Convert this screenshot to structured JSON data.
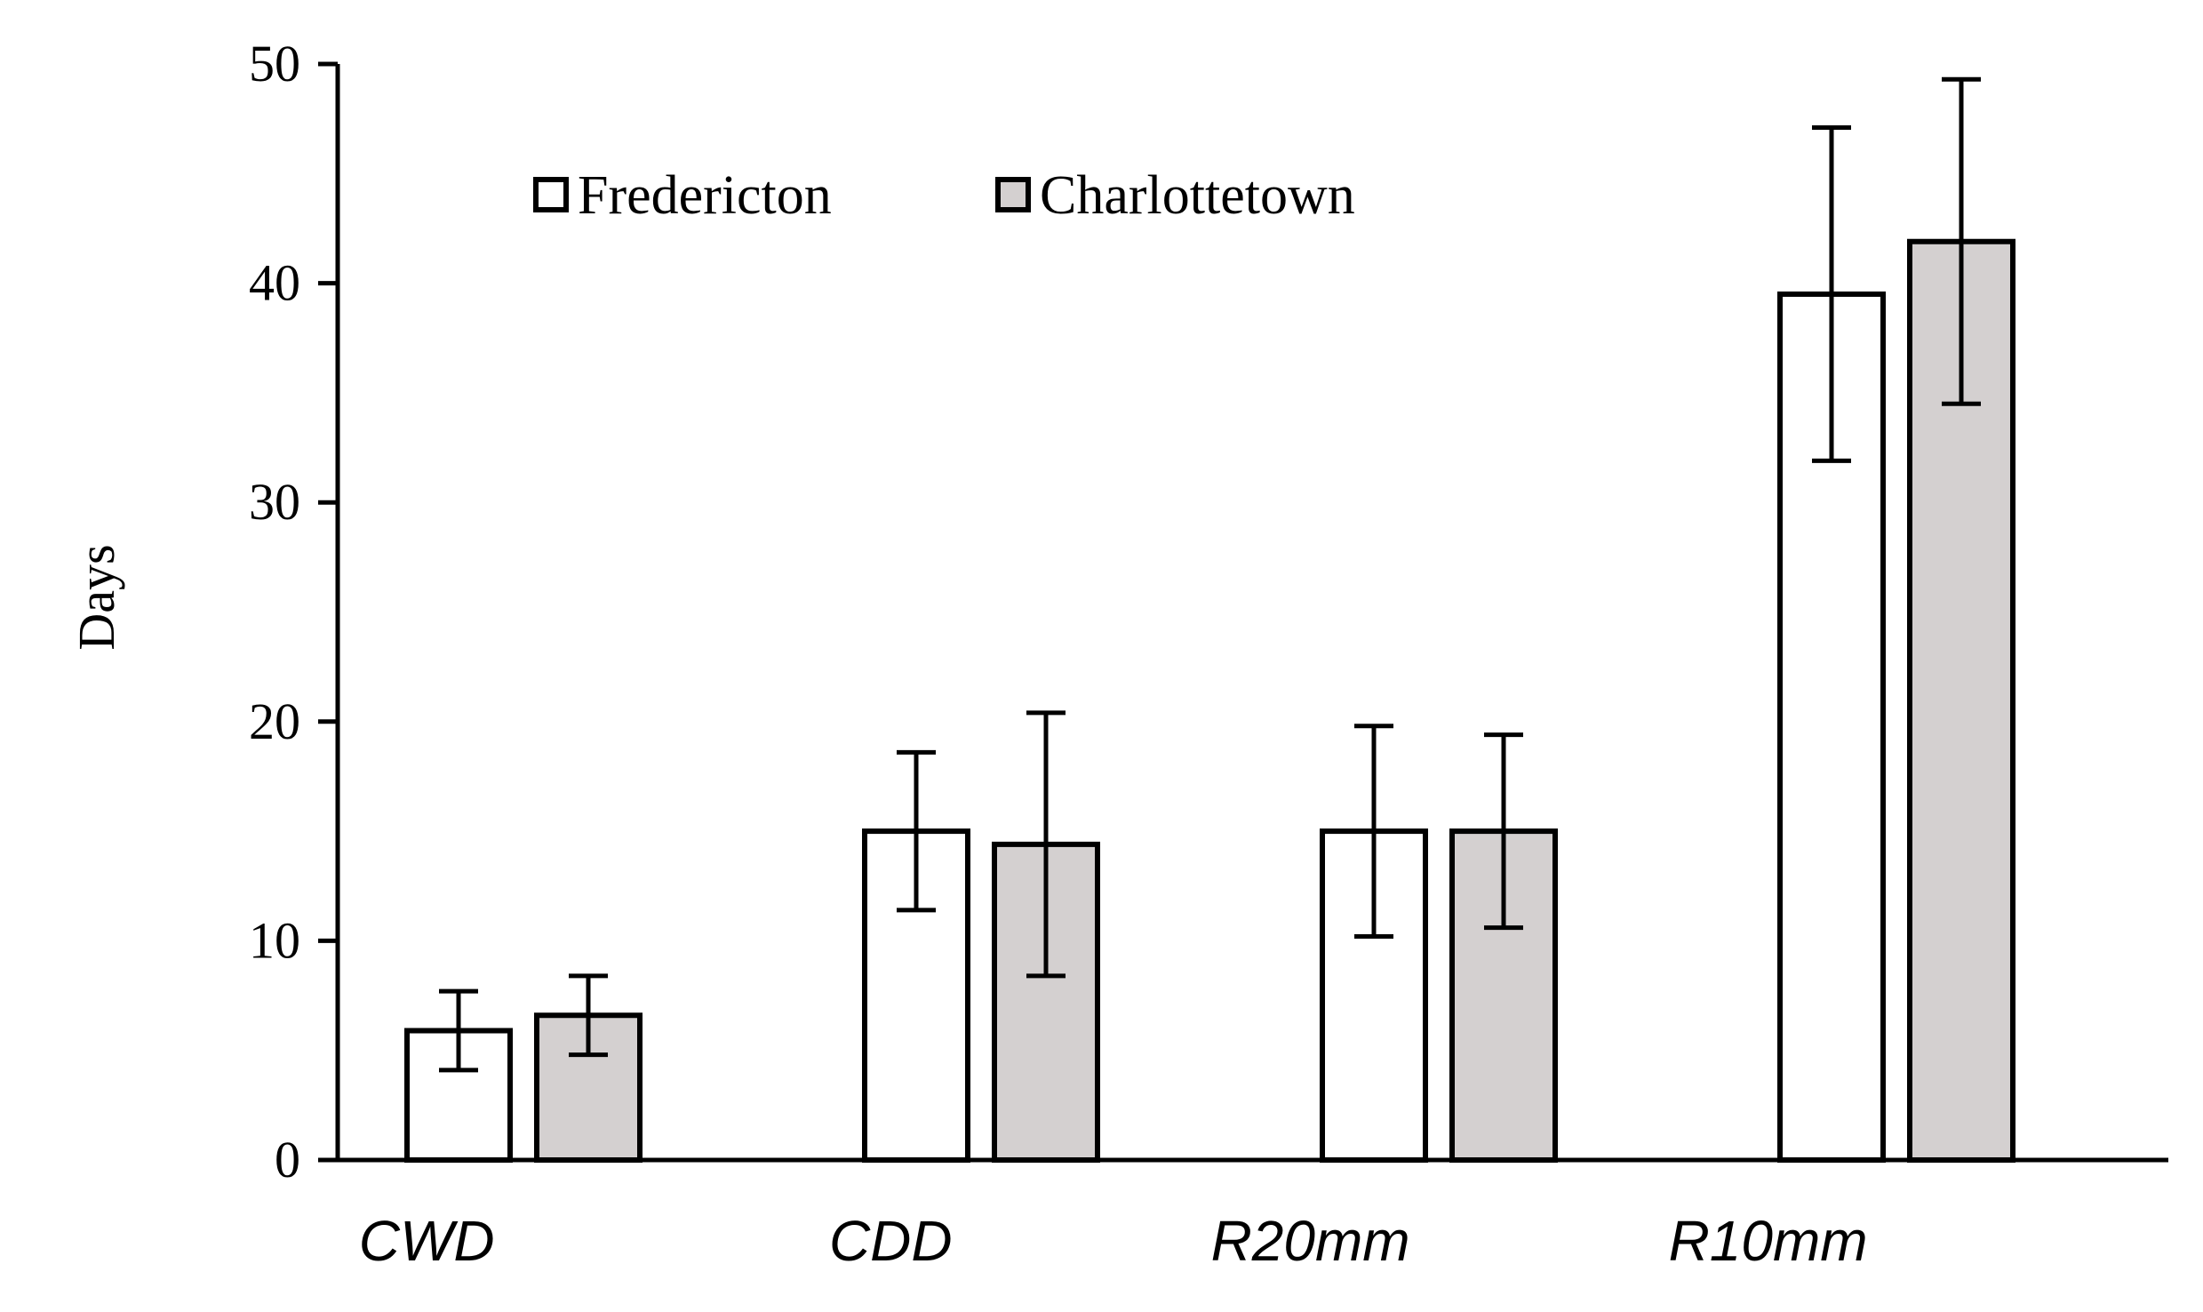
{
  "chart_data": {
    "type": "bar",
    "title": "",
    "xlabel": "",
    "ylabel": "Days",
    "ylim": [
      0,
      50
    ],
    "yticks": [
      0,
      10,
      20,
      30,
      40,
      50
    ],
    "ytick_labels": [
      "0",
      "10",
      "20",
      "30",
      "40",
      "50"
    ],
    "categories": [
      "CWD",
      "CDD",
      "R20mm",
      "R10mm"
    ],
    "series": [
      {
        "name": "Fredericton",
        "color": "#ffffff",
        "values": [
          5.9,
          15.0,
          15.0,
          39.5
        ],
        "error": [
          1.8,
          3.6,
          4.8,
          7.6
        ]
      },
      {
        "name": "Charlottetown",
        "color": "#d4d0d0",
        "values": [
          6.6,
          14.4,
          15.0,
          41.9
        ],
        "error": [
          1.8,
          6.0,
          4.4,
          7.4
        ]
      }
    ],
    "legend_position": "top-left",
    "grid": false
  }
}
